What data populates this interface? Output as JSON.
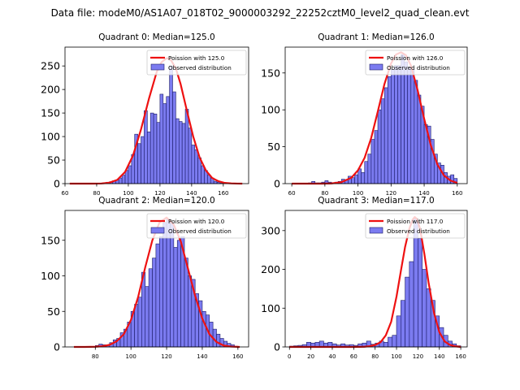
{
  "figure": {
    "suptitle": "Data file: modeM0/AS1A07_018T02_9000003292_22252cztM0_level2_quad_clean.evt"
  },
  "colors": {
    "bar_fill": "#7b7bf0",
    "bar_edge": "#1a1a66",
    "curve": "#ee1111"
  },
  "chart_data": [
    {
      "type": "bar",
      "title": "Quadrant 0: Median=125.0",
      "xlabel": "",
      "ylabel": "",
      "xlim": [
        60,
        176
      ],
      "ylim": [
        0,
        290
      ],
      "xticks": [
        60,
        80,
        100,
        120,
        140,
        160
      ],
      "yticks": [
        0,
        50,
        100,
        150,
        200,
        250
      ],
      "bin_width": 2,
      "legend": [
        "Poission with 125.0",
        "Observed distribution"
      ],
      "curve_label": "Poission with 125.0",
      "bar_label": "Observed distribution",
      "lambda": 125.0,
      "curve_x": [
        63,
        68,
        73,
        78,
        83,
        88,
        93,
        98,
        103,
        108,
        113,
        118,
        121,
        124,
        125,
        127,
        130,
        133,
        137,
        141,
        145,
        149,
        153,
        157,
        161,
        165,
        169,
        172
      ],
      "curve_y": [
        0,
        0,
        0,
        0,
        0.3,
        2,
        8,
        25,
        60,
        115,
        180,
        238,
        258,
        266,
        266,
        262,
        245,
        212,
        155,
        100,
        56,
        28,
        12,
        5,
        1.5,
        0.5,
        0.1,
        0
      ],
      "bin_left": [
        82,
        84,
        86,
        88,
        90,
        92,
        94,
        96,
        98,
        100,
        102,
        104,
        106,
        108,
        110,
        112,
        114,
        116,
        118,
        120,
        122,
        124,
        126,
        128,
        130,
        132,
        134,
        136,
        138,
        140,
        142,
        144,
        146,
        148,
        150,
        152,
        154,
        156,
        158
      ],
      "values": [
        1,
        1,
        3,
        4,
        6,
        8,
        12,
        18,
        28,
        38,
        62,
        105,
        85,
        100,
        155,
        110,
        150,
        148,
        130,
        190,
        170,
        185,
        250,
        195,
        138,
        132,
        128,
        158,
        118,
        82,
        72,
        55,
        38,
        28,
        18,
        12,
        5,
        3,
        1
      ]
    },
    {
      "type": "bar",
      "title": "Quadrant 1: Median=126.0",
      "xlabel": "",
      "ylabel": "",
      "xlim": [
        56,
        166
      ],
      "ylim": [
        0,
        185
      ],
      "xticks": [
        60,
        80,
        100,
        120,
        140,
        160
      ],
      "yticks": [
        0,
        50,
        100,
        150
      ],
      "bin_width": 2,
      "legend": [
        "Poission with 126.0",
        "Observed distribution"
      ],
      "curve_label": "Poission with 126.0",
      "bar_label": "Observed distribution",
      "lambda": 126.0,
      "curve_x": [
        60,
        66,
        72,
        78,
        84,
        90,
        96,
        100,
        104,
        108,
        112,
        116,
        120,
        123,
        126,
        129,
        132,
        136,
        140,
        144,
        148,
        152,
        156,
        160
      ],
      "curve_y": [
        0,
        0,
        0,
        0,
        0.3,
        2,
        8,
        18,
        35,
        62,
        98,
        135,
        163,
        175,
        178,
        174,
        160,
        127,
        88,
        52,
        26,
        11,
        4,
        1
      ],
      "bin_left": [
        70,
        72,
        74,
        76,
        78,
        80,
        82,
        84,
        86,
        88,
        90,
        92,
        94,
        96,
        98,
        100,
        102,
        104,
        106,
        108,
        110,
        112,
        114,
        116,
        118,
        120,
        122,
        124,
        126,
        128,
        130,
        132,
        134,
        136,
        138,
        140,
        142,
        144,
        146,
        148,
        150,
        152,
        154,
        156,
        158
      ],
      "values": [
        1,
        3,
        1,
        1,
        2,
        4,
        2,
        1,
        2,
        3,
        6,
        5,
        10,
        8,
        12,
        20,
        15,
        30,
        40,
        60,
        72,
        100,
        115,
        130,
        145,
        155,
        160,
        160,
        175,
        165,
        158,
        155,
        140,
        120,
        105,
        80,
        78,
        60,
        40,
        28,
        25,
        15,
        10,
        12,
        7
      ]
    },
    {
      "type": "bar",
      "title": "Quadrant 2: Median=120.0",
      "xlabel": "",
      "ylabel": "",
      "xlim": [
        63,
        166
      ],
      "ylim": [
        0,
        192
      ],
      "xticks": [
        80,
        100,
        120,
        140,
        160
      ],
      "yticks": [
        0,
        50,
        100,
        150
      ],
      "bin_width": 2,
      "legend": [
        "Poission with 120.0",
        "Observed distribution"
      ],
      "curve_label": "Poission with 120.0",
      "bar_label": "Observed distribution",
      "lambda": 120.0,
      "curve_x": [
        68,
        74,
        80,
        84,
        88,
        92,
        96,
        100,
        104,
        108,
        112,
        116,
        120,
        124,
        128,
        132,
        136,
        140,
        144,
        148,
        152,
        156,
        161
      ],
      "curve_y": [
        0,
        0,
        0.3,
        1,
        3,
        8,
        18,
        38,
        70,
        112,
        150,
        175,
        182,
        172,
        148,
        110,
        72,
        40,
        18,
        7,
        2,
        0.5,
        0
      ],
      "bin_left": [
        80,
        82,
        84,
        86,
        88,
        90,
        92,
        94,
        96,
        98,
        100,
        102,
        104,
        106,
        108,
        110,
        112,
        114,
        116,
        118,
        120,
        122,
        124,
        126,
        128,
        130,
        132,
        134,
        136,
        138,
        140,
        142,
        144,
        146,
        148,
        150,
        152,
        154,
        156,
        158
      ],
      "values": [
        2,
        4,
        3,
        3,
        6,
        10,
        12,
        20,
        25,
        35,
        50,
        60,
        70,
        105,
        85,
        110,
        125,
        145,
        155,
        175,
        180,
        175,
        140,
        150,
        155,
        125,
        100,
        95,
        75,
        65,
        50,
        45,
        35,
        25,
        18,
        12,
        8,
        5,
        3,
        1
      ]
    },
    {
      "type": "bar",
      "title": "Quadrant 3: Median=117.0",
      "xlabel": "",
      "ylabel": "",
      "xlim": [
        -4,
        166
      ],
      "ylim": [
        0,
        352
      ],
      "xticks": [
        0,
        20,
        40,
        60,
        80,
        100,
        120,
        140,
        160
      ],
      "yticks": [
        0,
        100,
        200,
        300
      ],
      "bin_width": 4,
      "legend": [
        "Poission with 117.0",
        "Observed distribution"
      ],
      "curve_label": "Poission with 117.0",
      "bar_label": "Observed distribution",
      "lambda": 117.0,
      "curve_x": [
        0,
        20,
        40,
        60,
        70,
        75,
        80,
        85,
        90,
        95,
        100,
        104,
        108,
        112,
        115,
        117,
        119,
        122,
        126,
        130,
        135,
        140,
        145,
        150,
        155,
        160
      ],
      "curve_y": [
        0,
        0,
        0,
        0,
        0.5,
        2,
        5,
        12,
        30,
        65,
        130,
        195,
        258,
        305,
        328,
        335,
        330,
        305,
        240,
        165,
        88,
        38,
        14,
        5,
        1.5,
        0
      ],
      "bin_left": [
        0,
        4,
        8,
        12,
        16,
        20,
        24,
        28,
        32,
        36,
        40,
        44,
        48,
        52,
        56,
        60,
        64,
        68,
        72,
        76,
        80,
        84,
        88,
        92,
        96,
        100,
        104,
        108,
        112,
        116,
        120,
        124,
        128,
        132,
        136,
        140,
        144,
        148,
        152,
        156
      ],
      "values": [
        2,
        3,
        4,
        6,
        12,
        10,
        12,
        15,
        10,
        12,
        8,
        5,
        8,
        5,
        6,
        4,
        8,
        10,
        15,
        7,
        10,
        15,
        12,
        25,
        30,
        80,
        120,
        180,
        220,
        330,
        280,
        200,
        150,
        120,
        80,
        50,
        30,
        15,
        8,
        3
      ]
    }
  ]
}
